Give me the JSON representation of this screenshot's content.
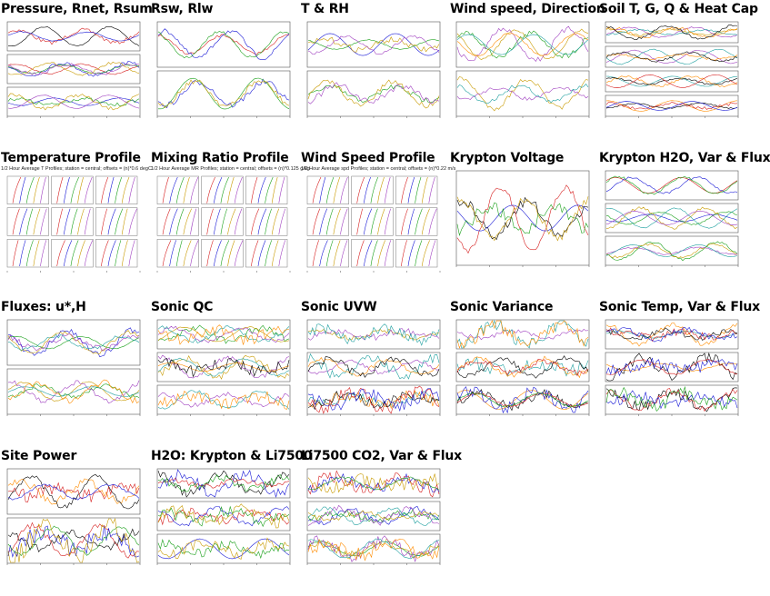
{
  "page": {
    "title": ""
  },
  "tiles": [
    {
      "title": "Pressure, Rnet, Rsum",
      "subtitle": "",
      "panels": 3
    },
    {
      "title": "Rsw, Rlw",
      "subtitle": "",
      "panels": 2
    },
    {
      "title": "T & RH",
      "subtitle": "",
      "panels": 2
    },
    {
      "title": "Wind speed, Direction",
      "subtitle": "",
      "panels": 2
    },
    {
      "title": "Soil T, G, Q & Heat Cap",
      "subtitle": "",
      "panels": 4
    },
    {
      "title": "Temperature Profile",
      "subtitle": "1/2 Hour Average T Profiles; station = central; offsets = (n)*0.6 degC",
      "panels": 9
    },
    {
      "title": "Mixing Ratio Profile",
      "subtitle": "1/2 Hour Average MR Profiles; station = central; offsets = (n)*0.125 g/kg",
      "panels": 9
    },
    {
      "title": "Wind Speed Profile",
      "subtitle": "1/2 Hour Average spd Profiles; station = central; offsets = (n)*0.22 m/s",
      "panels": 9
    },
    {
      "title": "Krypton Voltage",
      "subtitle": "",
      "panels": 1
    },
    {
      "title": "Krypton H2O, Var & Flux",
      "subtitle": "",
      "panels": 3
    },
    {
      "title": "Fluxes: u*,H",
      "subtitle": "",
      "panels": 2
    },
    {
      "title": "Sonic QC",
      "subtitle": "",
      "panels": 3
    },
    {
      "title": "Sonic UVW",
      "subtitle": "",
      "panels": 3
    },
    {
      "title": "Sonic Variance",
      "subtitle": "",
      "panels": 3
    },
    {
      "title": "Sonic Temp, Var & Flux",
      "subtitle": "",
      "panels": 3
    },
    {
      "title": "Site Power",
      "subtitle": "",
      "panels": 2
    },
    {
      "title": "H2O: Krypton & Li7500",
      "subtitle": "",
      "panels": 3
    },
    {
      "title": "Li7500 CO2, Var & Flux",
      "subtitle": "",
      "panels": 3
    }
  ],
  "colors": [
    "#000000",
    "#d62020",
    "#1a1ad6",
    "#1aa01a",
    "#c89a00",
    "#a040c0",
    "#20a0a0",
    "#ff8c00"
  ],
  "chart_data": []
}
